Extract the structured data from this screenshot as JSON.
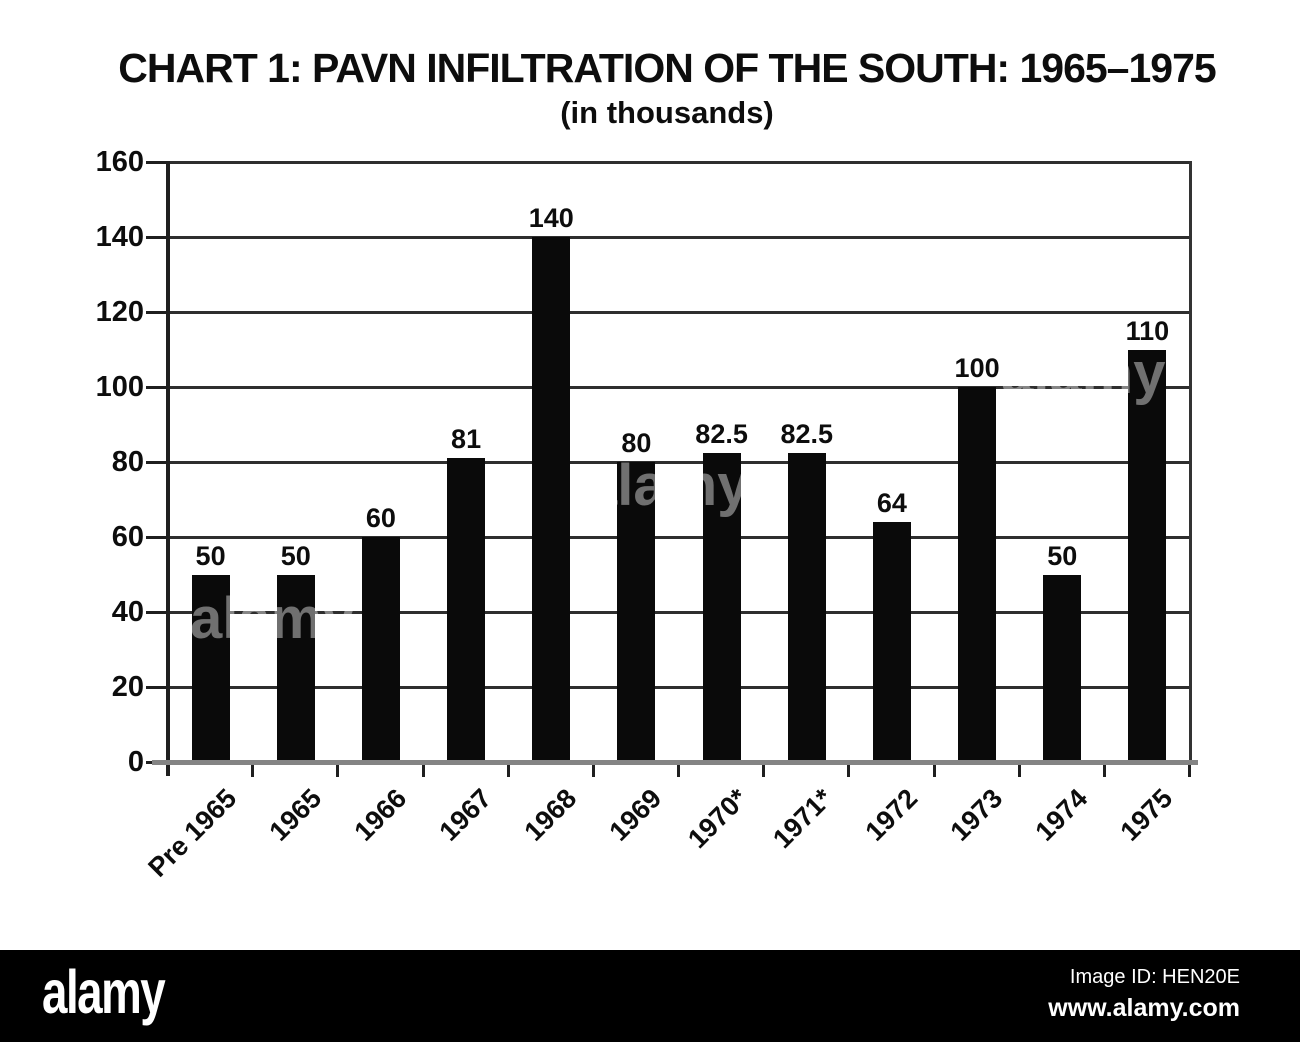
{
  "chart_data": {
    "type": "bar",
    "title": "CHART 1: PAVN INFILTRATION OF THE SOUTH: 1965–1975",
    "subtitle": "(in thousands)",
    "categories": [
      "Pre 1965",
      "1965",
      "1966",
      "1967",
      "1968",
      "1969",
      "1970*",
      "1971*",
      "1972",
      "1973",
      "1974",
      "1975"
    ],
    "values": [
      50,
      50,
      60,
      81,
      140,
      80,
      82.5,
      82.5,
      64,
      100,
      50,
      110
    ],
    "xlabel": "",
    "ylabel": "",
    "ylim": [
      0,
      160
    ],
    "ytick_step": 20,
    "yticks": [
      160,
      140,
      120,
      100,
      80,
      60,
      40,
      20,
      0
    ],
    "grid": true,
    "legend": null,
    "bar_color": "#0a0a0a"
  },
  "watermark": {
    "brand": "alamy",
    "ghost_label": "alamy",
    "image_id": "Image ID: HEN20E",
    "url": "www.alamy.com"
  }
}
